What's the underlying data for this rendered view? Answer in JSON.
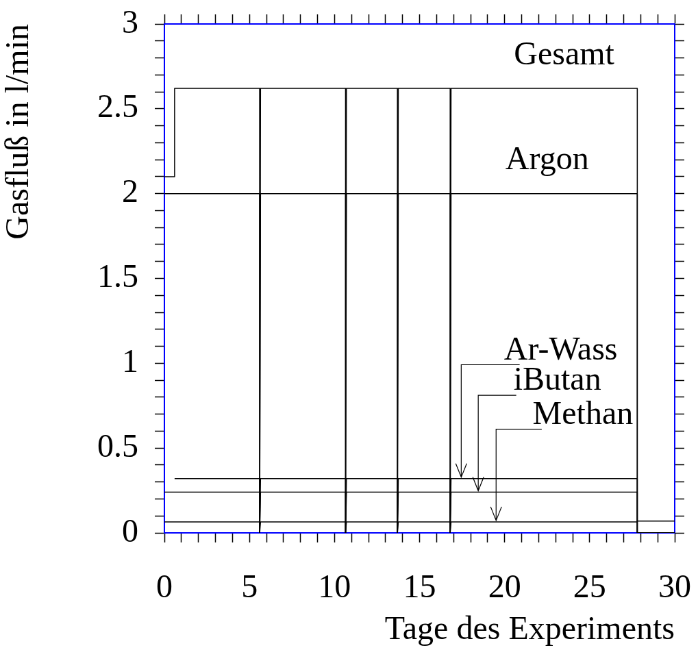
{
  "chart_data": {
    "type": "line",
    "xlabel": "Tage des Experiments",
    "ylabel": "Gasfluß in l/min",
    "xlim": [
      0,
      30
    ],
    "ylim": [
      0,
      3
    ],
    "xticks": [
      0,
      {
        "value": 1,
        "label": null
      },
      {
        "value": 2,
        "label": null
      },
      {
        "value": 3,
        "label": null
      },
      {
        "value": 4,
        "label": null
      },
      5,
      {
        "value": 6,
        "label": null
      },
      {
        "value": 7,
        "label": null
      },
      {
        "value": 8,
        "label": null
      },
      {
        "value": 9,
        "label": null
      },
      10,
      {
        "value": 11,
        "label": null
      },
      {
        "value": 12,
        "label": null
      },
      {
        "value": 13,
        "label": null
      },
      {
        "value": 14,
        "label": null
      },
      15,
      {
        "value": 16,
        "label": null
      },
      {
        "value": 17,
        "label": null
      },
      {
        "value": 18,
        "label": null
      },
      {
        "value": 19,
        "label": null
      },
      20,
      {
        "value": 21,
        "label": null
      },
      {
        "value": 22,
        "label": null
      },
      {
        "value": 23,
        "label": null
      },
      {
        "value": 24,
        "label": null
      },
      25,
      {
        "value": 26,
        "label": null
      },
      {
        "value": 27,
        "label": null
      },
      {
        "value": 28,
        "label": null
      },
      {
        "value": 29,
        "label": null
      },
      30
    ],
    "yticks": [
      0,
      {
        "value": 0.1,
        "label": null
      },
      {
        "value": 0.2,
        "label": null
      },
      {
        "value": 0.3,
        "label": null
      },
      {
        "value": 0.4,
        "label": null
      },
      0.5,
      {
        "value": 0.6,
        "label": null
      },
      {
        "value": 0.7,
        "label": null
      },
      {
        "value": 0.8,
        "label": null
      },
      {
        "value": 0.9,
        "label": null
      },
      1,
      {
        "value": 1.1,
        "label": null
      },
      {
        "value": 1.2,
        "label": null
      },
      {
        "value": 1.3,
        "label": null
      },
      {
        "value": 1.4,
        "label": null
      },
      1.5,
      {
        "value": 1.6,
        "label": null
      },
      {
        "value": 1.7,
        "label": null
      },
      {
        "value": 1.8,
        "label": null
      },
      {
        "value": 1.9,
        "label": null
      },
      2,
      {
        "value": 2.1,
        "label": null
      },
      {
        "value": 2.2,
        "label": null
      },
      {
        "value": 2.3,
        "label": null
      },
      {
        "value": 2.4,
        "label": null
      },
      2.5,
      {
        "value": 2.6,
        "label": null
      },
      {
        "value": 2.7,
        "label": null
      },
      {
        "value": 2.8,
        "label": null
      },
      {
        "value": 2.9,
        "label": null
      },
      3
    ],
    "grid": false,
    "legend": "top right",
    "marker": "none",
    "line_style": "solid",
    "series": [
      {
        "name": "Gesamt",
        "color": "#000000",
        "x": [
          0,
          0.6,
          0.6,
          5.6,
          5.6,
          5.65,
          10.65,
          10.65,
          10.7,
          13.7,
          13.7,
          13.75,
          16.8,
          16.8,
          16.85,
          27.8,
          27.8,
          30
        ],
        "values": [
          2.1,
          2.1,
          2.62,
          2.62,
          0,
          2.62,
          2.62,
          0,
          2.62,
          2.62,
          0,
          2.62,
          2.62,
          0,
          2.62,
          2.62,
          0.07,
          0.07
        ]
      },
      {
        "name": "Argon",
        "color": "#000000",
        "x": [
          0,
          5.6,
          5.6,
          5.65,
          10.65,
          10.65,
          10.7,
          13.7,
          13.7,
          13.75,
          16.8,
          16.8,
          16.85,
          27.8,
          27.8,
          30
        ],
        "values": [
          2,
          2,
          0,
          2,
          2,
          0,
          2,
          2,
          0,
          2,
          2,
          0,
          2,
          2,
          0,
          0
        ]
      },
      {
        "name": "Ar-Wass",
        "color": "#000000",
        "x": [
          0.6,
          5.6,
          5.6,
          5.65,
          10.65,
          10.65,
          10.7,
          13.7,
          13.7,
          13.75,
          16.8,
          16.8,
          16.85,
          27.8,
          27.8,
          30
        ],
        "values": [
          0.32,
          0.32,
          0,
          0.32,
          0.32,
          0,
          0.32,
          0.32,
          0,
          0.32,
          0.32,
          0,
          0.32,
          0.32,
          0,
          0
        ]
      },
      {
        "name": "iButan",
        "color": "#000000",
        "x": [
          0,
          5.6,
          5.6,
          5.65,
          10.65,
          10.65,
          10.7,
          13.7,
          13.7,
          13.75,
          16.8,
          16.8,
          16.85,
          27.8,
          27.8,
          30
        ],
        "values": [
          0.24,
          0.24,
          0,
          0.24,
          0.24,
          0,
          0.24,
          0.24,
          0,
          0.24,
          0.24,
          0,
          0.24,
          0.24,
          0,
          0
        ]
      },
      {
        "name": "Methan",
        "color": "#000000",
        "x": [
          0,
          5.6,
          5.6,
          5.65,
          10.65,
          10.65,
          10.7,
          13.7,
          13.7,
          13.75,
          16.8,
          16.8,
          16.85,
          27.8,
          27.8,
          30
        ],
        "values": [
          0.065,
          0.065,
          0,
          0.065,
          0.065,
          0,
          0.065,
          0.065,
          0,
          0.065,
          0.065,
          0,
          0.065,
          0.065,
          0,
          0
        ]
      }
    ]
  }
}
